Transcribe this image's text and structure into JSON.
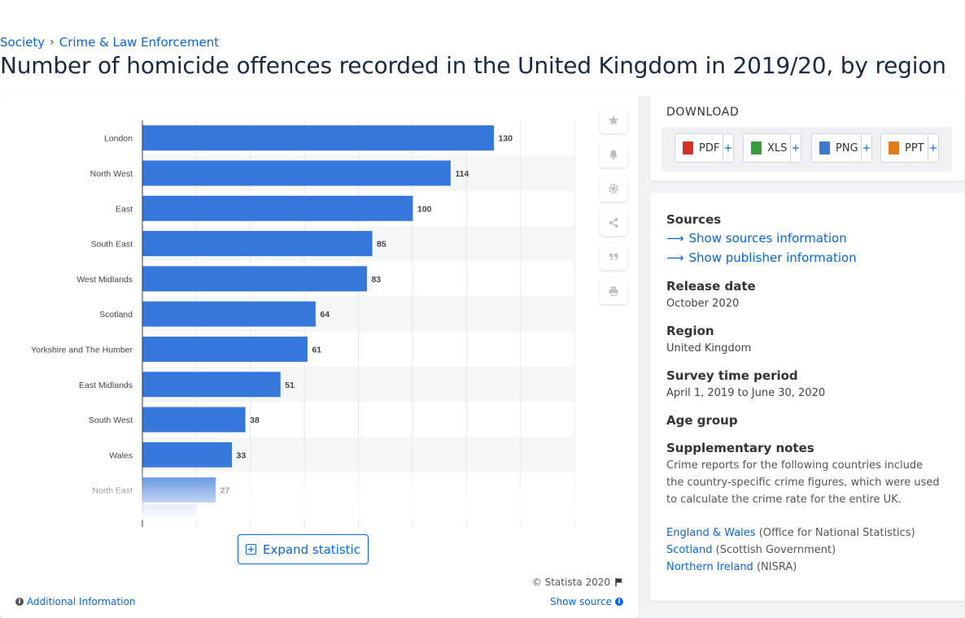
{
  "breadcrumb": [
    "Society",
    "Crime & Law Enforcement"
  ],
  "page_title": "Number of homicide offences recorded in the United Kingdom in 2019/20, by region",
  "colors": {
    "bar": "#3677db",
    "accent": "#0666e5",
    "band": "#f5f6f7"
  },
  "chart_data": {
    "type": "bar",
    "orientation": "horizontal",
    "categories": [
      "London",
      "North West",
      "East",
      "South East",
      "West Midlands",
      "Scotland",
      "Yorkshire and The Humber",
      "East Midlands",
      "South West",
      "Wales",
      "North East"
    ],
    "values": [
      130,
      114,
      100,
      85,
      83,
      64,
      61,
      51,
      38,
      33,
      27
    ],
    "xlim": [
      0,
      160
    ],
    "grid": true,
    "title": "",
    "xlabel": "",
    "ylabel": ""
  },
  "side_icons": [
    "star-icon",
    "bell-icon",
    "gear-icon",
    "share-icon",
    "quote-icon",
    "print-icon"
  ],
  "expand_label": "Expand statistic",
  "copyright": "© Statista 2020",
  "additional_info": "Additional Information",
  "show_source": "Show source",
  "download": {
    "title": "DOWNLOAD",
    "buttons": [
      {
        "label": "PDF",
        "icon": "pdf-file-icon",
        "color": "#d93025"
      },
      {
        "label": "XLS",
        "icon": "xls-file-icon",
        "color": "#3a9b3a"
      },
      {
        "label": "PNG",
        "icon": "png-file-icon",
        "color": "#3b7bd1"
      },
      {
        "label": "PPT",
        "icon": "ppt-file-icon",
        "color": "#e07b1f"
      }
    ],
    "plus": "+"
  },
  "details": {
    "sources_heading": "Sources",
    "show_sources": "Show sources information",
    "show_publisher": "Show publisher information",
    "release_heading": "Release date",
    "release_value": "October 2020",
    "region_heading": "Region",
    "region_value": "United Kingdom",
    "survey_heading": "Survey time period",
    "survey_value": "April 1, 2019 to June 30, 2020",
    "age_heading": "Age group",
    "notes_heading": "Supplementary notes",
    "notes_text": "Crime reports for the following countries include the country-specific crime figures, which were used to calculate the crime rate for the entire UK.",
    "sources": [
      {
        "link": "England & Wales",
        "rest": " (Office for National Statistics)"
      },
      {
        "link": "Scotland",
        "rest": " (Scottish Government)"
      },
      {
        "link": "Northern Ireland",
        "rest": " (NISRA)"
      }
    ]
  }
}
